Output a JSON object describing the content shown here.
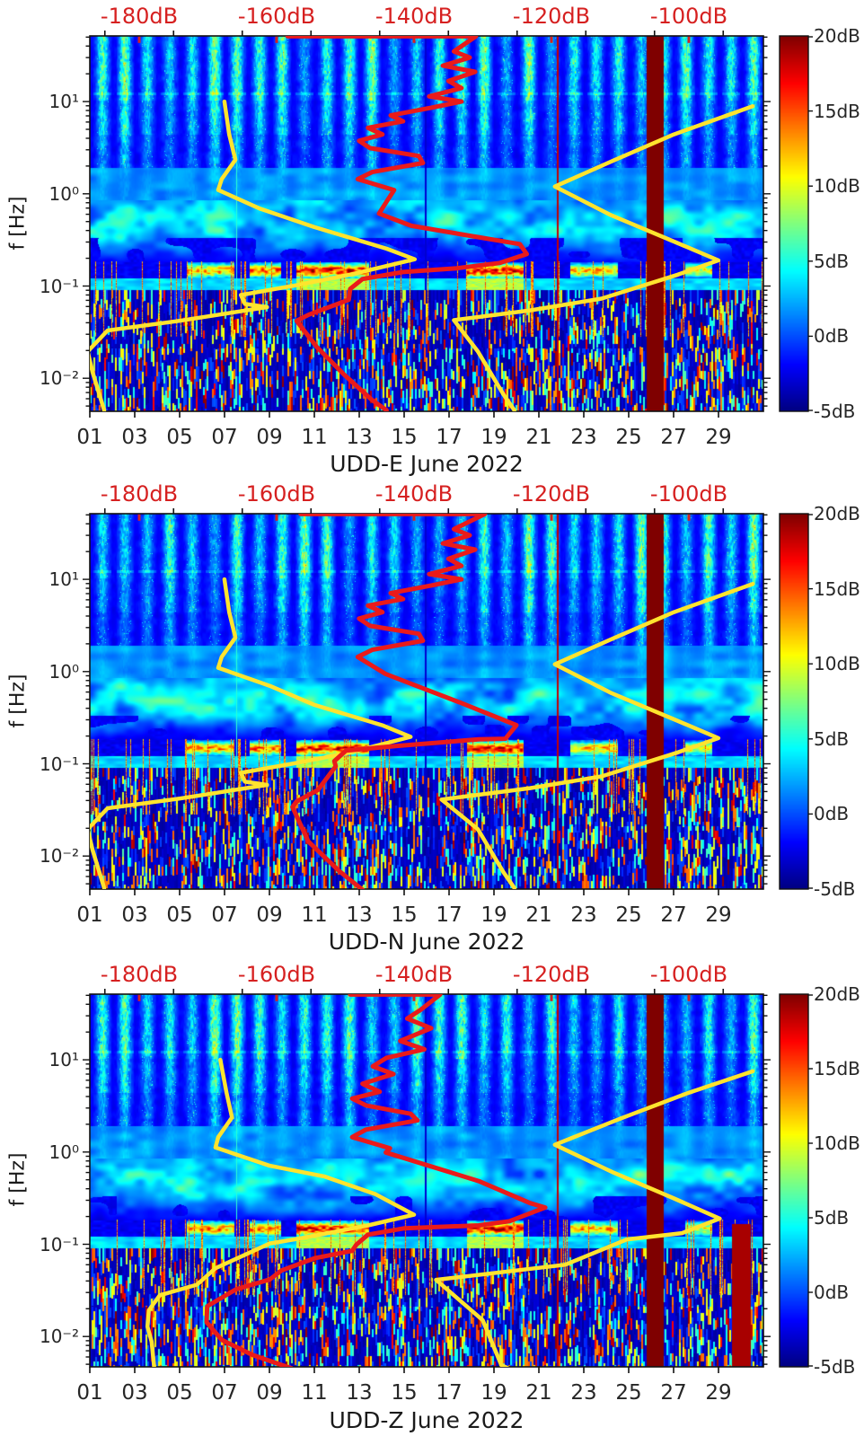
{
  "colors": {
    "curve_red": "#ea1a1a",
    "curve_yellow": "#ffe42e",
    "top_axis_red": "#d62020",
    "axis_black": "#111111",
    "background": "#ffffff"
  },
  "top_axis": {
    "unit": "dB",
    "tick_labels": [
      "-180dB",
      "-160dB",
      "-140dB",
      "-120dB",
      "-100dB"
    ],
    "tick_values_db": [
      -180,
      -160,
      -140,
      -120,
      -100
    ],
    "range_db": [
      -187.2,
      -89.2
    ]
  },
  "x_axis": {
    "tick_labels": [
      "01",
      "03",
      "05",
      "07",
      "09",
      "11",
      "13",
      "15",
      "17",
      "19",
      "21",
      "23",
      "25",
      "27",
      "29"
    ],
    "tick_days": [
      1,
      3,
      5,
      7,
      9,
      11,
      13,
      15,
      17,
      19,
      21,
      23,
      25,
      27,
      29
    ],
    "days_span": [
      1,
      31
    ]
  },
  "y_axis": {
    "label": "f [Hz]",
    "scale": "log",
    "min_hz": 0.0044,
    "max_hz": 51.5,
    "decade_labels": [
      "10¹",
      "10⁰",
      "10⁻¹",
      "10⁻²"
    ],
    "decade_exponents": [
      1,
      0,
      -1,
      -2
    ]
  },
  "colorbar": {
    "unit": "dB",
    "min": -5,
    "max": 20,
    "colormap": "jet",
    "tick_labels": [
      "20dB",
      "15dB",
      "10dB",
      "5dB",
      "0dB",
      "-5dB"
    ],
    "tick_values": [
      20,
      15,
      10,
      5,
      0,
      -5
    ]
  },
  "chart_data": [
    {
      "type": "heatmap",
      "station": "UDD-E",
      "xlabel": "UDD-E June 2022",
      "ylabel": "f [Hz]",
      "curves": {
        "psd_red": [
          [
            -158.4,
            51
          ],
          [
            -131.0,
            51
          ],
          [
            -134.2,
            35
          ],
          [
            -131.9,
            30
          ],
          [
            -135.8,
            24.5
          ],
          [
            -131.1,
            21
          ],
          [
            -135.0,
            16.7
          ],
          [
            -133.1,
            14
          ],
          [
            -137.8,
            11.4
          ],
          [
            -133.1,
            10
          ],
          [
            -137.4,
            8.6
          ],
          [
            -143.4,
            7.1
          ],
          [
            -141.6,
            6.1
          ],
          [
            -146.7,
            5.2
          ],
          [
            -144.6,
            4.4
          ],
          [
            -148.0,
            3.75
          ],
          [
            -146.4,
            3.13
          ],
          [
            -139.3,
            2.57
          ],
          [
            -138.7,
            2.16
          ],
          [
            -146.1,
            1.72
          ],
          [
            -148.2,
            1.44
          ],
          [
            -142.9,
            1.1
          ],
          [
            -144.1,
            0.8
          ],
          [
            -145.1,
            0.61
          ],
          [
            -140.4,
            0.45
          ],
          [
            -131.8,
            0.35
          ],
          [
            -124.6,
            0.285
          ],
          [
            -123.6,
            0.222
          ],
          [
            -127.5,
            0.178
          ],
          [
            -133.8,
            0.156
          ],
          [
            -141.6,
            0.142
          ],
          [
            -147.5,
            0.119
          ],
          [
            -149.3,
            0.093
          ],
          [
            -149.5,
            0.071
          ],
          [
            -155.3,
            0.049
          ],
          [
            -157.1,
            0.042
          ],
          [
            -154.2,
            0.022
          ],
          [
            -150.2,
            0.011
          ],
          [
            -146.1,
            0.0058
          ],
          [
            -144.0,
            0.0045
          ]
        ],
        "noise_model_low_yellow": [
          [
            -167.6,
            10
          ],
          [
            -166.9,
            4.4
          ],
          [
            -166.0,
            2.34
          ],
          [
            -168.0,
            1.44
          ],
          [
            -168.5,
            1.1
          ],
          [
            -162.4,
            0.69
          ],
          [
            -154.5,
            0.435
          ],
          [
            -144.0,
            0.254
          ],
          [
            -139.9,
            0.195
          ],
          [
            -149.3,
            0.133
          ],
          [
            -157.1,
            0.102
          ],
          [
            -165.2,
            0.08
          ],
          [
            -164.6,
            0.064
          ],
          [
            -161.4,
            0.059
          ],
          [
            -174.1,
            0.042
          ],
          [
            -184.6,
            0.033
          ],
          [
            -187.5,
            0.0195
          ],
          [
            -186.8,
            0.0117
          ],
          [
            -185.1,
            0.0045
          ]
        ],
        "noise_model_high_yellow": [
          [
            -90.7,
            8.9
          ],
          [
            -102.2,
            4.4
          ],
          [
            -111.3,
            2.24
          ],
          [
            -119.5,
            1.2
          ],
          [
            -111.3,
            0.585
          ],
          [
            -102.0,
            0.3
          ],
          [
            -95.7,
            0.19
          ],
          [
            -101.6,
            0.133
          ],
          [
            -112.7,
            0.073
          ],
          [
            -123.1,
            0.0545
          ],
          [
            -134.2,
            0.0427
          ],
          [
            -130.7,
            0.0195
          ],
          [
            -127.0,
            0.0067
          ],
          [
            -125.4,
            0.0045
          ]
        ]
      },
      "features": {
        "saturated_column_days": [
          25.8,
          26.55
        ],
        "thin_red_line_day": 21.8,
        "pale_gap_line_day": 7.5,
        "dark_gap_line_day": 15.9,
        "microseism_streaks_days_level": [
          [
            5.3,
            7.4,
            14
          ],
          [
            8.1,
            9.5,
            15
          ],
          [
            10.2,
            13.4,
            18
          ],
          [
            17.8,
            20.3,
            18
          ],
          [
            22.4,
            24.5,
            13
          ],
          [
            27.5,
            28.7,
            11
          ]
        ],
        "secondary_streak_days": [
          [
            10.2,
            13.4
          ],
          [
            17.8,
            20.3
          ]
        ]
      }
    },
    {
      "type": "heatmap",
      "station": "UDD-N",
      "xlabel": "UDD-N June 2022",
      "ylabel": "f [Hz]",
      "curves": {
        "psd_red": [
          [
            -156.5,
            51
          ],
          [
            -129.7,
            51
          ],
          [
            -134.2,
            35
          ],
          [
            -131.9,
            30
          ],
          [
            -135.8,
            24.5
          ],
          [
            -131.1,
            21
          ],
          [
            -135.0,
            16.7
          ],
          [
            -133.1,
            14
          ],
          [
            -137.8,
            11.4
          ],
          [
            -133.1,
            10
          ],
          [
            -137.4,
            8.6
          ],
          [
            -143.4,
            7.1
          ],
          [
            -141.6,
            6.1
          ],
          [
            -146.7,
            5.2
          ],
          [
            -144.6,
            4.4
          ],
          [
            -148.0,
            3.75
          ],
          [
            -146.4,
            3.13
          ],
          [
            -139.3,
            2.57
          ],
          [
            -138.7,
            2.16
          ],
          [
            -146.1,
            1.72
          ],
          [
            -148.2,
            1.44
          ],
          [
            -144.1,
            0.94
          ],
          [
            -133.2,
            0.458
          ],
          [
            -125.1,
            0.262
          ],
          [
            -126.7,
            0.187
          ],
          [
            -130.6,
            0.184
          ],
          [
            -142.7,
            0.156
          ],
          [
            -149.9,
            0.139
          ],
          [
            -151.6,
            0.107
          ],
          [
            -151.4,
            0.094
          ],
          [
            -154.0,
            0.052
          ],
          [
            -157.1,
            0.039
          ],
          [
            -157.7,
            0.034
          ],
          [
            -155.4,
            0.0144
          ],
          [
            -150.9,
            0.0069
          ],
          [
            -147.5,
            0.0043
          ]
        ],
        "noise_model_low_yellow": [
          [
            -167.6,
            10
          ],
          [
            -166.9,
            4.4
          ],
          [
            -166.0,
            2.34
          ],
          [
            -168.0,
            1.44
          ],
          [
            -168.5,
            1.1
          ],
          [
            -161.0,
            0.7
          ],
          [
            -154.5,
            0.435
          ],
          [
            -144.5,
            0.26
          ],
          [
            -140.5,
            0.196
          ],
          [
            -149.3,
            0.133
          ],
          [
            -157.1,
            0.102
          ],
          [
            -165.2,
            0.08
          ],
          [
            -164.6,
            0.064
          ],
          [
            -161.4,
            0.059
          ],
          [
            -174.1,
            0.042
          ],
          [
            -184.6,
            0.033
          ],
          [
            -187.5,
            0.0195
          ],
          [
            -186.8,
            0.0117
          ],
          [
            -185.1,
            0.0045
          ]
        ],
        "noise_model_high_yellow": [
          [
            -90.7,
            8.9
          ],
          [
            -102.2,
            4.4
          ],
          [
            -111.3,
            2.24
          ],
          [
            -119.5,
            1.2
          ],
          [
            -111.3,
            0.585
          ],
          [
            -102.0,
            0.3
          ],
          [
            -95.7,
            0.19
          ],
          [
            -101.6,
            0.133
          ],
          [
            -112.7,
            0.073
          ],
          [
            -123.1,
            0.0545
          ],
          [
            -136.0,
            0.041
          ],
          [
            -130.7,
            0.0195
          ],
          [
            -127.0,
            0.0067
          ],
          [
            -125.4,
            0.0045
          ]
        ]
      },
      "features": {
        "saturated_column_days": [
          25.8,
          26.55
        ],
        "thin_red_line_day": 21.8,
        "pale_gap_line_day": 7.5,
        "dark_gap_line_day": 15.9,
        "microseism_streaks_days_level": [
          [
            5.3,
            7.4,
            14
          ],
          [
            8.1,
            9.5,
            15
          ],
          [
            10.2,
            13.4,
            18
          ],
          [
            17.8,
            20.3,
            18
          ],
          [
            22.4,
            24.5,
            13
          ],
          [
            27.5,
            28.7,
            11
          ]
        ],
        "secondary_streak_days": [
          [
            10.2,
            13.4
          ],
          [
            17.8,
            20.3
          ]
        ]
      }
    },
    {
      "type": "heatmap",
      "station": "UDD-Z",
      "xlabel": "UDD-Z June 2022",
      "ylabel": "f [Hz]",
      "curves": {
        "psd_red": [
          [
            -149.3,
            51
          ],
          [
            -136.2,
            51
          ],
          [
            -139.0,
            35
          ],
          [
            -141.0,
            28
          ],
          [
            -137.5,
            22
          ],
          [
            -142.0,
            16
          ],
          [
            -138.5,
            13
          ],
          [
            -144.0,
            10.5
          ],
          [
            -146.0,
            8.5
          ],
          [
            -143.0,
            7
          ],
          [
            -147.5,
            5.5
          ],
          [
            -145.0,
            4.5
          ],
          [
            -149.0,
            3.8
          ],
          [
            -147.0,
            3.2
          ],
          [
            -140.5,
            2.6
          ],
          [
            -139.5,
            2.2
          ],
          [
            -147.0,
            1.75
          ],
          [
            -149.0,
            1.45
          ],
          [
            -143.5,
            1.1
          ],
          [
            -144.1,
            0.99
          ],
          [
            -130.6,
            0.485
          ],
          [
            -123.1,
            0.279
          ],
          [
            -120.9,
            0.25
          ],
          [
            -126.1,
            0.178
          ],
          [
            -130.6,
            0.16
          ],
          [
            -141.4,
            0.149
          ],
          [
            -146.7,
            0.127
          ],
          [
            -148.4,
            0.099
          ],
          [
            -149.0,
            0.085
          ],
          [
            -154.5,
            0.0705
          ],
          [
            -159.3,
            0.052
          ],
          [
            -161.0,
            0.0415
          ],
          [
            -165.9,
            0.0325
          ],
          [
            -170.1,
            0.0213
          ],
          [
            -170.2,
            0.0143
          ],
          [
            -168.0,
            0.0092
          ],
          [
            -163.5,
            0.0063
          ],
          [
            -157.8,
            0.0045
          ]
        ],
        "noise_model_low_yellow": [
          [
            -168.2,
            10
          ],
          [
            -167.3,
            4.4
          ],
          [
            -166.5,
            2.37
          ],
          [
            -168.5,
            1.45
          ],
          [
            -168.9,
            1.12
          ],
          [
            -161.0,
            0.71
          ],
          [
            -153.1,
            0.545
          ],
          [
            -145.6,
            0.349
          ],
          [
            -140.0,
            0.209
          ],
          [
            -146.7,
            0.16
          ],
          [
            -157.1,
            0.114
          ],
          [
            -161.0,
            0.102
          ],
          [
            -168.9,
            0.055
          ],
          [
            -171.6,
            0.0365
          ],
          [
            -177.0,
            0.028
          ],
          [
            -178.6,
            0.0192
          ],
          [
            -178.8,
            0.0128
          ],
          [
            -178.2,
            0.0088
          ],
          [
            -177.8,
            0.0045
          ]
        ],
        "noise_model_high_yellow": [
          [
            -90.7,
            7.5
          ],
          [
            -100.0,
            4.4
          ],
          [
            -110.0,
            2.3
          ],
          [
            -119.5,
            1.2
          ],
          [
            -111.0,
            0.6
          ],
          [
            -102.0,
            0.31
          ],
          [
            -95.5,
            0.19
          ],
          [
            -101.0,
            0.132
          ],
          [
            -109.0,
            0.113
          ],
          [
            -118.0,
            0.06
          ],
          [
            -136.8,
            0.0412
          ],
          [
            -130.0,
            0.015
          ],
          [
            -127.3,
            0.0049
          ],
          [
            -126.3,
            0.0045
          ]
        ]
      },
      "features": {
        "saturated_column_days": [
          25.8,
          26.55
        ],
        "thin_red_line_day": 21.8,
        "pale_gap_line_day": 7.5,
        "dark_gap_line_day": 15.9,
        "extra_saturated_right_days": [
          29.6,
          30.4
        ],
        "microseism_streaks_days_level": [
          [
            5.3,
            7.4,
            14
          ],
          [
            8.1,
            9.5,
            15
          ],
          [
            10.2,
            13.4,
            18
          ],
          [
            17.8,
            20.3,
            18
          ],
          [
            22.4,
            24.5,
            13
          ],
          [
            27.5,
            28.7,
            11
          ]
        ],
        "secondary_streak_days": [
          [
            10.2,
            13.4
          ],
          [
            17.8,
            20.3
          ]
        ]
      }
    }
  ]
}
